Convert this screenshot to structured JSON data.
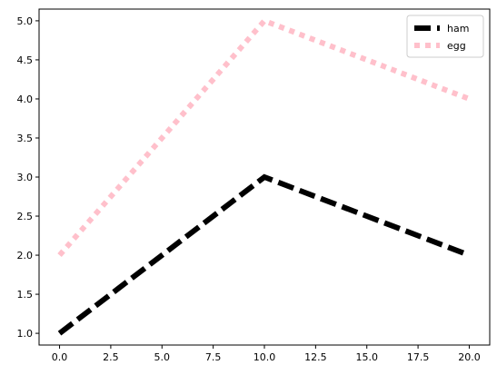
{
  "chart_data": {
    "type": "line",
    "title": "",
    "xlabel": "",
    "ylabel": "",
    "xlim": [
      -1,
      21
    ],
    "ylim": [
      0.85,
      5.15
    ],
    "x_ticks": [
      0.0,
      2.5,
      5.0,
      7.5,
      10.0,
      12.5,
      15.0,
      17.5,
      20.0
    ],
    "x_tick_labels": [
      "0.0",
      "2.5",
      "5.0",
      "7.5",
      "10.0",
      "12.5",
      "15.0",
      "17.5",
      "20.0"
    ],
    "y_ticks": [
      1.0,
      1.5,
      2.0,
      2.5,
      3.0,
      3.5,
      4.0,
      4.5,
      5.0
    ],
    "y_tick_labels": [
      "1.0",
      "1.5",
      "2.0",
      "2.5",
      "3.0",
      "3.5",
      "4.0",
      "4.5",
      "5.0"
    ],
    "grid": false,
    "legend_position": "top-right",
    "series": [
      {
        "name": "ham",
        "x": [
          0,
          10,
          20
        ],
        "y": [
          1,
          3,
          2
        ],
        "color": "#000000",
        "line_style": "dashed"
      },
      {
        "name": "egg",
        "x": [
          0,
          10,
          20
        ],
        "y": [
          2,
          5,
          4
        ],
        "color": "#ffc0cb",
        "line_style": "dotted"
      }
    ]
  }
}
